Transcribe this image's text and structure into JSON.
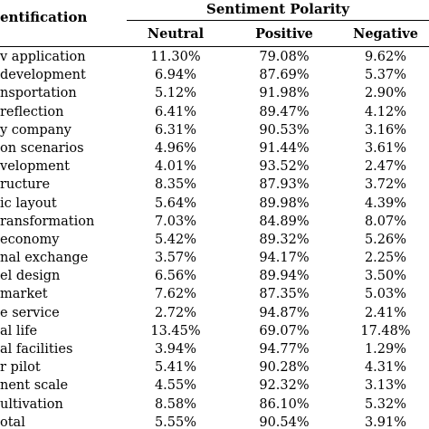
{
  "header": {
    "left": "entification",
    "group": "Sentiment Polarity",
    "col_neutral": "Neutral",
    "col_positive": "Positive",
    "col_negative": "Negative"
  },
  "rows": [
    {
      "label": "v application",
      "neutral": "11.30%",
      "positive": "79.08%",
      "negative": "9.62%"
    },
    {
      "label": "development",
      "neutral": "6.94%",
      "positive": "87.69%",
      "negative": "5.37%"
    },
    {
      "label": "nsportation",
      "neutral": "5.12%",
      "positive": "91.98%",
      "negative": "2.90%"
    },
    {
      "label": "reflection",
      "neutral": "6.41%",
      "positive": "89.47%",
      "negative": "4.12%"
    },
    {
      "label": "y company",
      "neutral": "6.31%",
      "positive": "90.53%",
      "negative": "3.16%"
    },
    {
      "label": "on scenarios",
      "neutral": "4.96%",
      "positive": "91.44%",
      "negative": "3.61%"
    },
    {
      "label": "velopment",
      "neutral": "4.01%",
      "positive": "93.52%",
      "negative": "2.47%"
    },
    {
      "label": "ructure",
      "neutral": "8.35%",
      "positive": "87.93%",
      "negative": "3.72%"
    },
    {
      "label": "ic layout",
      "neutral": "5.64%",
      "positive": "89.98%",
      "negative": "4.39%"
    },
    {
      "label": "ransformation",
      "neutral": "7.03%",
      "positive": "84.89%",
      "negative": "8.07%"
    },
    {
      "label": "economy",
      "neutral": "5.42%",
      "positive": "89.32%",
      "negative": "5.26%"
    },
    {
      "label": "nal exchange",
      "neutral": "3.57%",
      "positive": "94.17%",
      "negative": "2.25%"
    },
    {
      "label": "el design",
      "neutral": "6.56%",
      "positive": "89.94%",
      "negative": "3.50%"
    },
    {
      "label": "market",
      "neutral": "7.62%",
      "positive": "87.35%",
      "negative": "5.03%"
    },
    {
      "label": "e service",
      "neutral": "2.72%",
      "positive": "94.87%",
      "negative": "2.41%"
    },
    {
      "label": "al life",
      "neutral": "13.45%",
      "positive": "69.07%",
      "negative": "17.48%"
    },
    {
      "label": "al facilities",
      "neutral": "3.94%",
      "positive": "94.77%",
      "negative": "1.29%"
    },
    {
      "label": "r pilot",
      "neutral": "5.41%",
      "positive": "90.28%",
      "negative": "4.31%"
    },
    {
      "label": "nent scale",
      "neutral": "4.55%",
      "positive": "92.32%",
      "negative": "3.13%"
    },
    {
      "label": "ultivation",
      "neutral": "8.58%",
      "positive": "86.10%",
      "negative": "5.32%"
    },
    {
      "label": "otal",
      "neutral": "5.55%",
      "positive": "90.54%",
      "negative": "3.91%"
    }
  ]
}
